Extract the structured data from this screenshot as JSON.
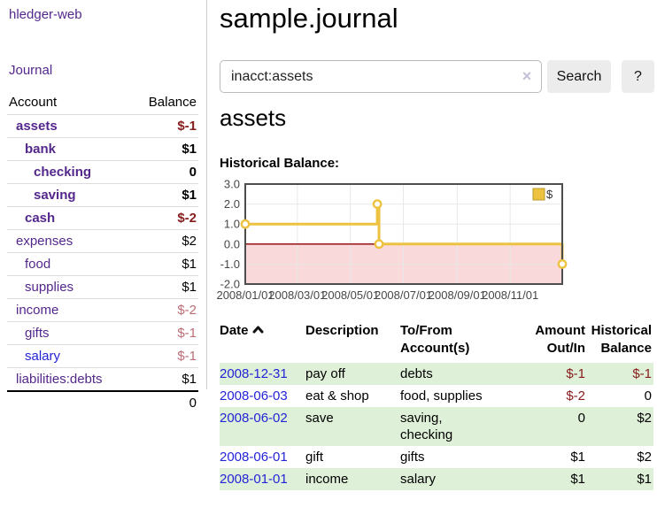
{
  "app": {
    "title": "hledger-web"
  },
  "nav": {
    "journal": "Journal"
  },
  "sidebar": {
    "header": {
      "account": "Account",
      "balance": "Balance"
    },
    "accounts": [
      {
        "name": "assets",
        "balance": "$-1"
      },
      {
        "name": "bank",
        "balance": "$1"
      },
      {
        "name": "checking",
        "balance": "0"
      },
      {
        "name": "saving",
        "balance": "$1"
      },
      {
        "name": "cash",
        "balance": "$-2"
      },
      {
        "name": "expenses",
        "balance": "$2"
      },
      {
        "name": "food",
        "balance": "$1"
      },
      {
        "name": "supplies",
        "balance": "$1"
      },
      {
        "name": "income",
        "balance": "$-2"
      },
      {
        "name": "gifts",
        "balance": "$-1"
      },
      {
        "name": "salary",
        "balance": "$-1"
      },
      {
        "name": "liabilities:debts",
        "balance": "$1"
      }
    ],
    "total": "0"
  },
  "header": {
    "title": "sample.journal"
  },
  "search": {
    "value": "inacct:assets",
    "clear_label": "×",
    "button": "Search",
    "help_button": "?"
  },
  "account_page": {
    "title": "assets",
    "chart_label": "Historical Balance:"
  },
  "chart_data": {
    "type": "line",
    "step": true,
    "title": "Historical Balance",
    "series": [
      {
        "name": "$",
        "points": [
          [
            "2008-01-01",
            1.0
          ],
          [
            "2008-06-01",
            2.0
          ],
          [
            "2008-06-03",
            0.0
          ],
          [
            "2008-12-31",
            -1.0
          ]
        ]
      }
    ],
    "x_range": [
      "2008-01-01",
      "2008-12-31"
    ],
    "ylim": [
      -2.0,
      3.0
    ],
    "y_ticks": [
      3.0,
      2.0,
      1.0,
      0.0,
      -1.0,
      -2.0
    ],
    "y_tick_labels": [
      "3.0",
      "2.0",
      "1.0",
      "0.0",
      "-1.0",
      "-2.0"
    ],
    "x_ticks": [
      "2008-01-01",
      "2008-03-01",
      "2008-05-01",
      "2008-07-01",
      "2008-09-01",
      "2008-11-01"
    ],
    "x_tick_labels": [
      "2008/01/01",
      "2008/03/01",
      "2008/05/01",
      "2008/07/01",
      "2008/09/01",
      "2008/11/01"
    ],
    "legend": {
      "label": "$",
      "position": "top-right"
    },
    "grid": true,
    "colors": {
      "line": "#edc240",
      "marker_fill": "#ffffff",
      "negative_region": "#f9d9d9",
      "zero_line": "#8b0000",
      "grid": "#e8e8e8",
      "border": "#4d4d4d",
      "tick_text": "#474747"
    }
  },
  "register": {
    "columns": {
      "date": "Date",
      "description": "Description",
      "tofrom_line1": "To/From",
      "tofrom_line2": "Account(s)",
      "amount_line1": "Amount",
      "amount_line2": "Out/In",
      "balance_line1": "Historical",
      "balance_line2": "Balance"
    },
    "rows": [
      {
        "date": "2008-12-31",
        "description": "pay off",
        "accounts": "debts",
        "amount": "$-1",
        "balance": "$-1"
      },
      {
        "date": "2008-06-03",
        "description": "eat & shop",
        "accounts": "food, supplies",
        "amount": "$-2",
        "balance": "0"
      },
      {
        "date": "2008-06-02",
        "description": "save",
        "accounts": "saving,\nchecking",
        "amount": "0",
        "balance": "$2"
      },
      {
        "date": "2008-06-01",
        "description": "gift",
        "accounts": "gifts",
        "amount": "$1",
        "balance": "$2"
      },
      {
        "date": "2008-01-01",
        "description": "income",
        "accounts": "salary",
        "amount": "$1",
        "balance": "$1"
      }
    ]
  }
}
